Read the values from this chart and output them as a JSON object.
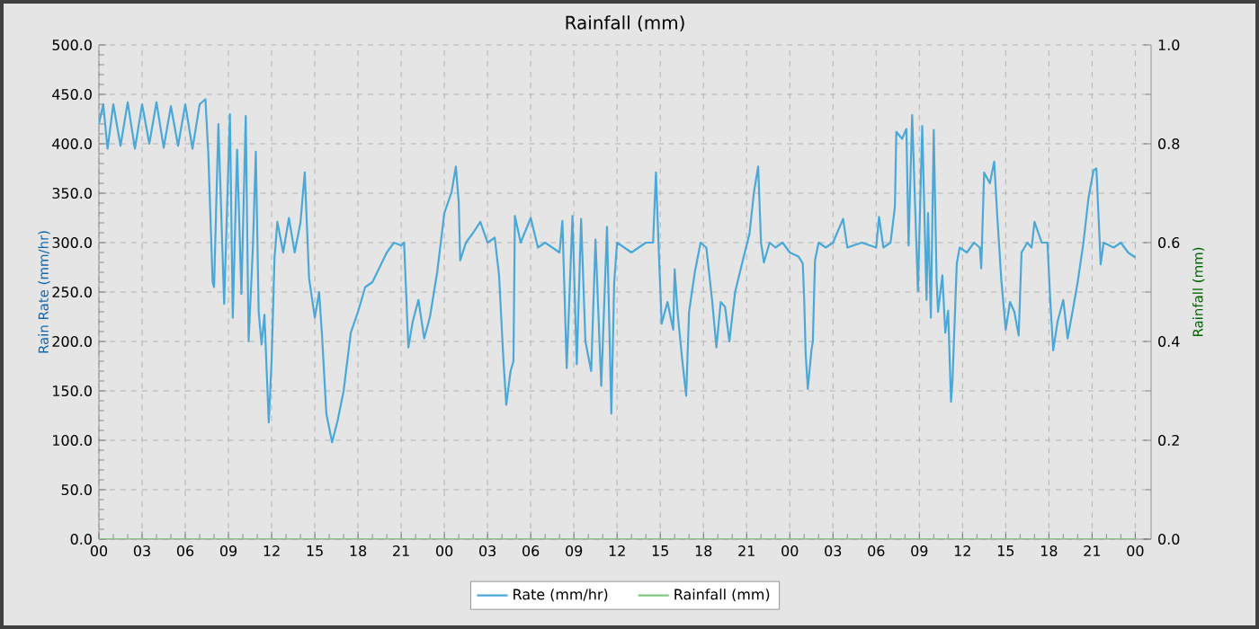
{
  "chart_data": {
    "type": "line",
    "title": "Rainfall (mm)",
    "ylabel": "Rain Rate (mm/hr)",
    "y2label": "Rainfall (mm)",
    "xlim": [
      0,
      73.1
    ],
    "ylim": [
      0,
      500
    ],
    "y2lim": [
      0,
      1.0
    ],
    "xticks": [
      {
        "value": 0,
        "label": "00"
      },
      {
        "value": 3,
        "label": "03"
      },
      {
        "value": 6,
        "label": "06"
      },
      {
        "value": 9,
        "label": "09"
      },
      {
        "value": 12,
        "label": "12"
      },
      {
        "value": 15,
        "label": "15"
      },
      {
        "value": 18,
        "label": "18"
      },
      {
        "value": 21,
        "label": "21"
      },
      {
        "value": 24,
        "label": "00"
      },
      {
        "value": 27,
        "label": "03"
      },
      {
        "value": 30,
        "label": "06"
      },
      {
        "value": 33,
        "label": "09"
      },
      {
        "value": 36,
        "label": "12"
      },
      {
        "value": 39,
        "label": "15"
      },
      {
        "value": 42,
        "label": "18"
      },
      {
        "value": 45,
        "label": "21"
      },
      {
        "value": 48,
        "label": "00"
      },
      {
        "value": 51,
        "label": "03"
      },
      {
        "value": 54,
        "label": "06"
      },
      {
        "value": 57,
        "label": "09"
      },
      {
        "value": 60,
        "label": "12"
      },
      {
        "value": 63,
        "label": "15"
      },
      {
        "value": 66,
        "label": "18"
      },
      {
        "value": 69,
        "label": "21"
      },
      {
        "value": 72,
        "label": "00"
      }
    ],
    "yticks": [
      {
        "value": 0,
        "label": "0.0"
      },
      {
        "value": 50,
        "label": "50.0"
      },
      {
        "value": 100,
        "label": "100.0"
      },
      {
        "value": 150,
        "label": "150.0"
      },
      {
        "value": 200,
        "label": "200.0"
      },
      {
        "value": 250,
        "label": "250.0"
      },
      {
        "value": 300,
        "label": "300.0"
      },
      {
        "value": 350,
        "label": "350.0"
      },
      {
        "value": 400,
        "label": "400.0"
      },
      {
        "value": 450,
        "label": "450.0"
      },
      {
        "value": 500,
        "label": "500.0"
      }
    ],
    "y2ticks": [
      {
        "value": 0,
        "label": "0.0"
      },
      {
        "value": 0.2,
        "label": "0.2"
      },
      {
        "value": 0.4,
        "label": "0.4"
      },
      {
        "value": 0.6,
        "label": "0.6"
      },
      {
        "value": 0.8,
        "label": "0.8"
      },
      {
        "value": 1.0,
        "label": "1.0"
      }
    ],
    "grid": true,
    "legend": "bottom",
    "series": [
      {
        "name": "Rate (mm/hr)",
        "color": "#4aa8d8",
        "x": [
          0,
          0.3,
          0.6,
          1,
          1.5,
          2,
          2.5,
          3,
          3.5,
          4,
          4.5,
          5,
          5.5,
          6,
          6.5,
          7,
          7.4,
          7.6,
          7.9,
          8.0,
          8.3,
          8.7,
          9.1,
          9.3,
          9.6,
          9.9,
          10.2,
          10.4,
          10.7,
          10.9,
          11.1,
          11.3,
          11.5,
          11.8,
          12.0,
          12.2,
          12.4,
          12.8,
          13.2,
          13.6,
          14.0,
          14.3,
          14.6,
          15.0,
          15.3,
          15.5,
          15.8,
          16.2,
          16.6,
          17.0,
          17.5,
          18.0,
          18.5,
          19.0,
          19.5,
          20.0,
          20.5,
          21.0,
          21.2,
          21.5,
          21.8,
          22.2,
          22.6,
          23.0,
          23.5,
          24.0,
          24.5,
          24.8,
          25.0,
          25.1,
          25.5,
          26,
          26.5,
          27,
          27.5,
          27.8,
          28.1,
          28.3,
          28.6,
          28.8,
          28.9,
          29.3,
          30,
          30.5,
          31,
          31.5,
          32.0,
          32.2,
          32.5,
          32.9,
          33.2,
          33.5,
          33.8,
          34.2,
          34.5,
          34.9,
          35.3,
          35.6,
          35.8,
          36.0,
          36.5,
          37,
          37.5,
          38,
          38.5,
          38.7,
          38.9,
          39.1,
          39.5,
          39.9,
          40.0,
          40.2,
          40.5,
          40.8,
          41.0,
          41.4,
          41.8,
          42.2,
          42.6,
          42.9,
          43.2,
          43.5,
          43.8,
          44.2,
          44.7,
          45.2,
          45.5,
          45.8,
          46.0,
          46.2,
          46.6,
          47,
          47.5,
          48,
          48.6,
          48.9,
          49.0,
          49.1,
          49.25,
          49.5,
          49.6,
          49.75,
          50.0,
          50.5,
          51,
          51.7,
          52,
          53,
          54,
          54.2,
          54.5,
          55,
          55.3,
          55.4,
          55.8,
          56.1,
          56.25,
          56.5,
          56.9,
          57.2,
          57.5,
          57.6,
          57.8,
          58.0,
          58.2,
          58.3,
          58.6,
          58.8,
          59.0,
          59.2,
          59.3,
          59.6,
          59.8,
          60.3,
          60.8,
          61.2,
          61.3,
          61.5,
          61.9,
          62.2,
          62.4,
          62.7,
          63.0,
          63.3,
          63.6,
          63.9,
          64.1,
          64.5,
          64.8,
          65.0,
          65.5,
          65.9,
          66.1,
          66.3,
          66.6,
          67.0,
          67.3,
          67.7,
          68.0,
          68.4,
          68.75,
          69.1,
          69.3,
          69.6,
          69.8,
          70.5,
          71,
          71.5,
          72.0
        ],
        "values": [
          420,
          440,
          395,
          440,
          398,
          442,
          395,
          440,
          400,
          442,
          396,
          438,
          398,
          440,
          395,
          440,
          445,
          390,
          260,
          255,
          420,
          238,
          430,
          224,
          394,
          248,
          428,
          200,
          297,
          392,
          230,
          197,
          227,
          118,
          182,
          285,
          321,
          290,
          325,
          290,
          320,
          371,
          264,
          224,
          250,
          206,
          127,
          98,
          121,
          150,
          209,
          230,
          255,
          260,
          275,
          290,
          300,
          297,
          300,
          194,
          220,
          242,
          203,
          225,
          270,
          330,
          351,
          377,
          340,
          282,
          300,
          310,
          321,
          300,
          305,
          267,
          182,
          136,
          170,
          180,
          327,
          300,
          325,
          295,
          300,
          295,
          290,
          322,
          173,
          327,
          177,
          324,
          200,
          170,
          303,
          155,
          316,
          127,
          260,
          300,
          295,
          290,
          295,
          300,
          300,
          371,
          290,
          218,
          240,
          212,
          273,
          230,
          185,
          145,
          230,
          270,
          300,
          295,
          242,
          194,
          240,
          235,
          200,
          250,
          280,
          309,
          350,
          377,
          300,
          280,
          300,
          295,
          300,
          290,
          286,
          279,
          242,
          188,
          152,
          191,
          200,
          282,
          300,
          295,
          300,
          324,
          295,
          300,
          295,
          326,
          295,
          300,
          336,
          412,
          405,
          415,
          297,
          429,
          251,
          418,
          242,
          330,
          224,
          414,
          261,
          230,
          267,
          209,
          231,
          139,
          160,
          279,
          295,
          290,
          300,
          295,
          274,
          371,
          360,
          382,
          330,
          261,
          212,
          240,
          230,
          206,
          290,
          300,
          295,
          321,
          300,
          300,
          240,
          191,
          220,
          242,
          203,
          235,
          260,
          300,
          345,
          373,
          375,
          278,
          300,
          295,
          300,
          290,
          285
        ]
      },
      {
        "name": "Rainfall (mm)",
        "type": "line",
        "axis": "y2",
        "color": "#80c880",
        "x": [
          0,
          72.1
        ],
        "values": [
          0,
          0
        ]
      }
    ]
  }
}
